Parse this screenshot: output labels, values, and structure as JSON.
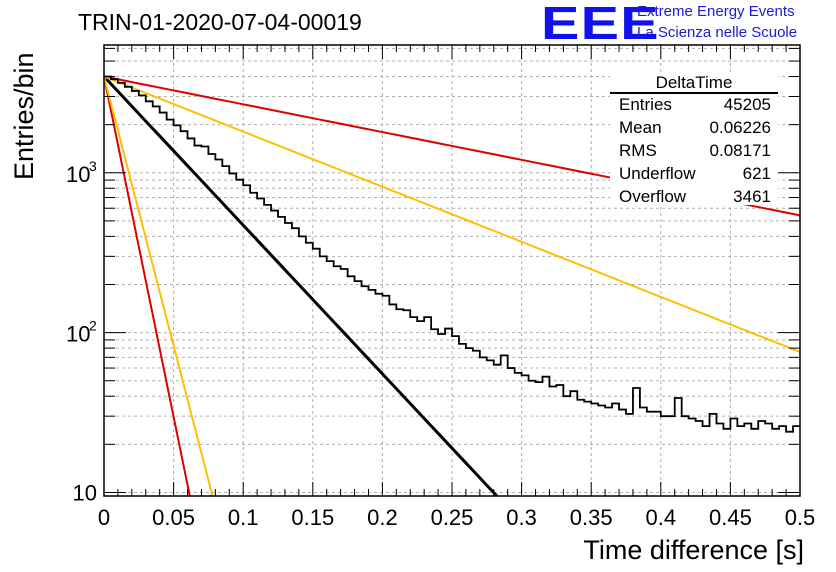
{
  "header": {
    "title": "TRIN-01-2020-07-04-00019",
    "logo_text": "EEE",
    "subtitle_line1": "Extreme Energy Events",
    "subtitle_line2": "La Scienza nelle Scuole"
  },
  "stats_box": {
    "name": "DeltaTime",
    "rows": [
      {
        "key": "Entries",
        "value": "45205"
      },
      {
        "key": "Mean",
        "value": "0.06226"
      },
      {
        "key": "RMS",
        "value": "0.08171"
      },
      {
        "key": "Underflow",
        "value": "621"
      },
      {
        "key": "Overflow",
        "value": "3461"
      }
    ]
  },
  "colors": {
    "histogram": "#000000",
    "fit_line": "#000000",
    "red_lines": "#dd0000",
    "yellow_lines": "#ffbf00",
    "grid": "#b0b0b0"
  },
  "chart_data": {
    "type": "line",
    "xlabel": "Time difference [s]",
    "ylabel": "Entries/bin",
    "xlim": [
      0,
      0.5
    ],
    "ylim": [
      9.5,
      6300
    ],
    "y_scale": "log",
    "grid": true,
    "x_ticks": [
      "0",
      "0.05",
      "0.1",
      "0.15",
      "0.2",
      "0.25",
      "0.3",
      "0.35",
      "0.4",
      "0.45",
      "0.5"
    ],
    "y_ticks": [
      {
        "value": 10,
        "label": "10"
      },
      {
        "value": 100,
        "label": "10",
        "exponent": "2"
      },
      {
        "value": 1000,
        "label": "10",
        "exponent": "3"
      }
    ],
    "histogram": {
      "name": "DeltaTime",
      "bin_width": 0.005,
      "values": [
        4000,
        3850,
        3650,
        3450,
        3250,
        3050,
        2800,
        2600,
        2380,
        2150,
        1980,
        1820,
        1640,
        1480,
        1460,
        1310,
        1210,
        1100,
        990,
        905,
        835,
        750,
        690,
        630,
        580,
        530,
        485,
        450,
        400,
        365,
        335,
        300,
        280,
        260,
        250,
        225,
        210,
        195,
        185,
        175,
        170,
        150,
        140,
        138,
        125,
        118,
        125,
        105,
        98,
        106,
        95,
        85,
        80,
        77,
        70,
        67,
        63,
        72,
        60,
        56,
        54,
        50,
        49,
        53,
        46,
        47,
        40,
        43,
        38,
        37,
        36,
        35,
        34,
        36,
        33,
        31,
        45,
        34,
        32,
        32,
        30,
        30,
        39,
        30,
        29,
        28,
        26,
        31,
        27,
        25,
        29,
        26,
        27,
        25,
        28,
        27,
        25,
        26,
        24,
        26
      ]
    },
    "series": [
      {
        "color": "black",
        "type": "exponential",
        "y0": 4000,
        "tau": 0.0467
      },
      {
        "color": "red",
        "type": "exponential",
        "y0": 4000,
        "tau": 0.25
      },
      {
        "color": "yellow",
        "type": "exponential",
        "y0": 4000,
        "tau": 0.126
      },
      {
        "color": "red",
        "type": "exponential",
        "y0": 4000,
        "tau": 0.0102
      },
      {
        "color": "yellow",
        "type": "exponential",
        "y0": 4000,
        "tau": 0.0129
      }
    ]
  }
}
